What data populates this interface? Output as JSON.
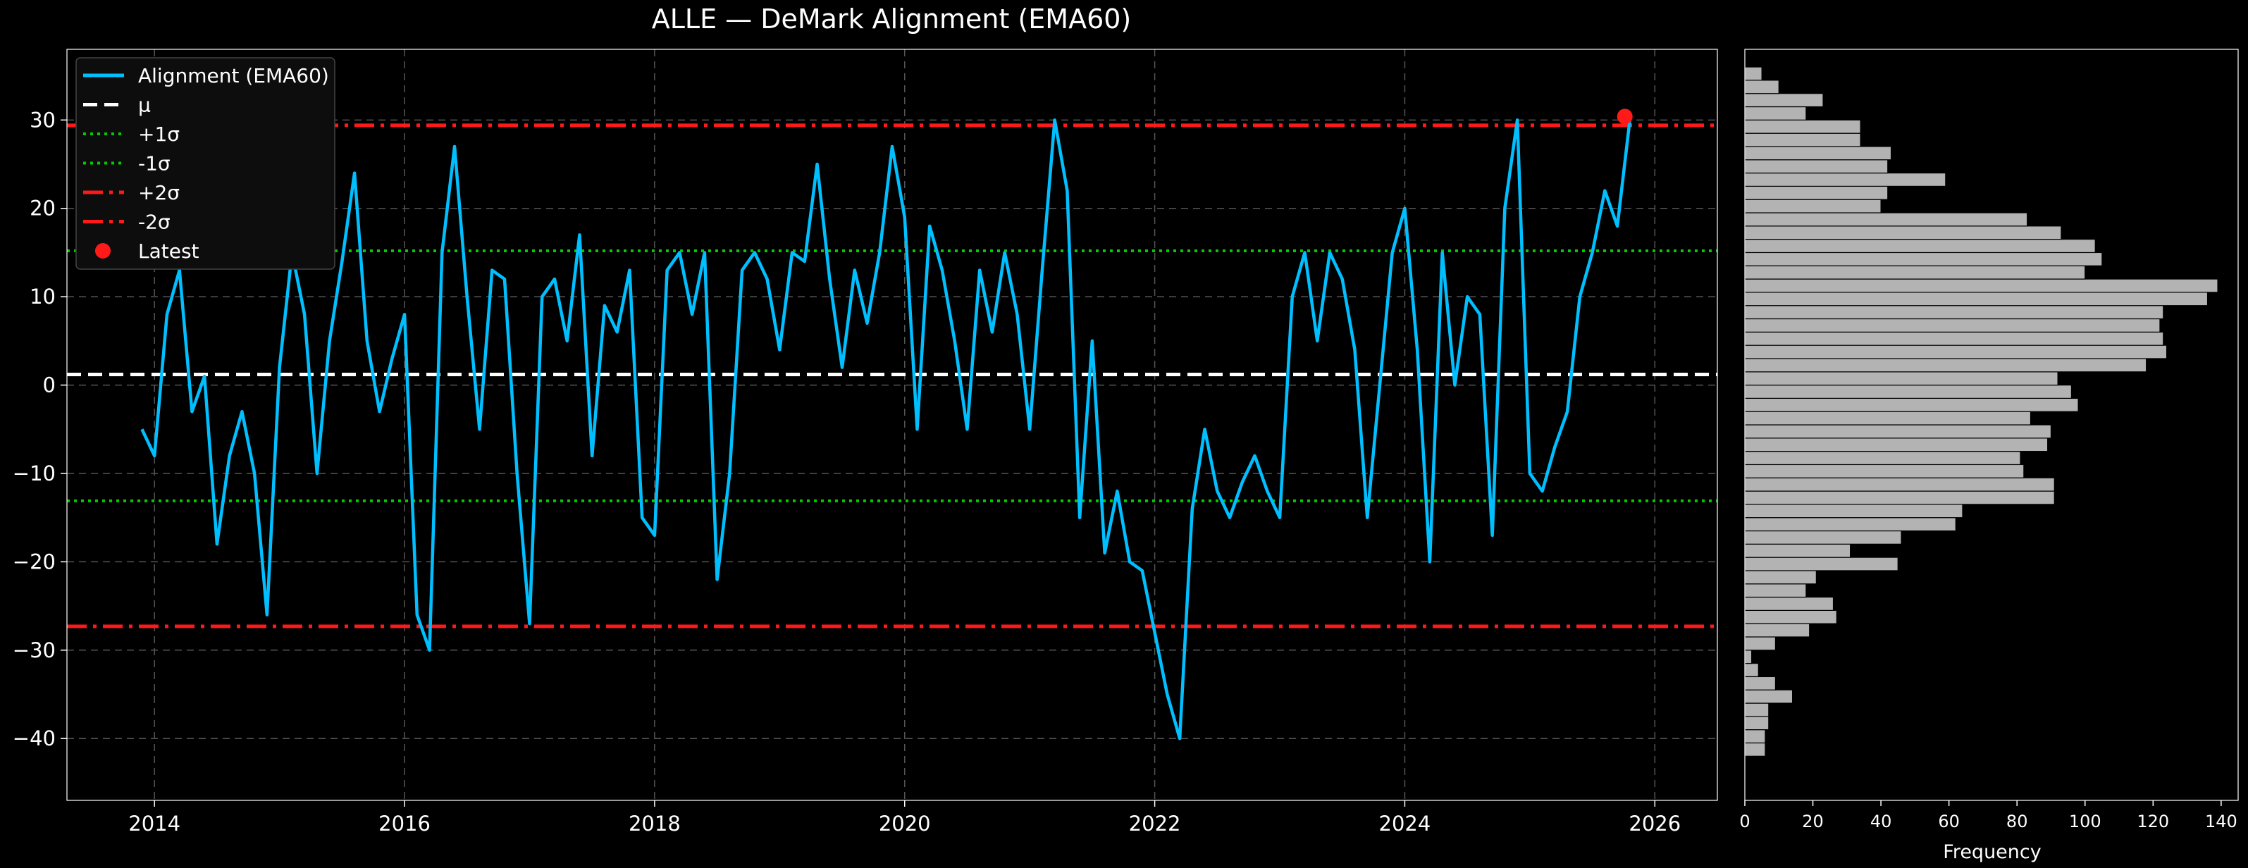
{
  "chart_data": [
    {
      "type": "line",
      "title": "ALLE — DeMark Alignment (EMA60)",
      "xlabel": "",
      "ylabel": "",
      "xlim": [
        2013.3,
        2026.5
      ],
      "ylim": [
        -47,
        38
      ],
      "xticks": [
        2014,
        2016,
        2018,
        2020,
        2022,
        2024,
        2026
      ],
      "xtick_labels": [
        "2014",
        "2016",
        "2018",
        "2020",
        "2022",
        "2024",
        "2026"
      ],
      "yticks": [
        -40,
        -30,
        -20,
        -10,
        0,
        10,
        20,
        30
      ],
      "ytick_labels": [
        "−40",
        "−30",
        "−20",
        "−10",
        "0",
        "10",
        "20",
        "30"
      ],
      "grid": true,
      "legend_position": "upper-left",
      "series": [
        {
          "name": "Alignment (EMA60)",
          "color": "#00bfff",
          "x": [
            2013.9,
            2014.0,
            2014.1,
            2014.2,
            2014.3,
            2014.4,
            2014.5,
            2014.6,
            2014.7,
            2014.8,
            2014.9,
            2015.0,
            2015.1,
            2015.2,
            2015.3,
            2015.4,
            2015.5,
            2015.6,
            2015.7,
            2015.8,
            2015.9,
            2016.0,
            2016.1,
            2016.2,
            2016.3,
            2016.4,
            2016.5,
            2016.6,
            2016.7,
            2016.8,
            2016.9,
            2017.0,
            2017.1,
            2017.2,
            2017.3,
            2017.4,
            2017.5,
            2017.6,
            2017.7,
            2017.8,
            2017.9,
            2018.0,
            2018.1,
            2018.2,
            2018.3,
            2018.4,
            2018.5,
            2018.6,
            2018.7,
            2018.8,
            2018.9,
            2019.0,
            2019.1,
            2019.2,
            2019.3,
            2019.4,
            2019.5,
            2019.6,
            2019.7,
            2019.8,
            2019.9,
            2020.0,
            2020.1,
            2020.2,
            2020.3,
            2020.4,
            2020.5,
            2020.6,
            2020.7,
            2020.8,
            2020.9,
            2021.0,
            2021.1,
            2021.2,
            2021.3,
            2021.4,
            2021.5,
            2021.6,
            2021.7,
            2021.8,
            2021.9,
            2022.0,
            2022.1,
            2022.2,
            2022.3,
            2022.4,
            2022.5,
            2022.6,
            2022.7,
            2022.8,
            2022.9,
            2023.0,
            2023.1,
            2023.2,
            2023.3,
            2023.4,
            2023.5,
            2023.6,
            2023.7,
            2023.8,
            2023.9,
            2024.0,
            2024.1,
            2024.2,
            2024.3,
            2024.4,
            2024.5,
            2024.6,
            2024.7,
            2024.8,
            2024.9,
            2025.0,
            2025.1,
            2025.2,
            2025.3,
            2025.4,
            2025.5,
            2025.6,
            2025.7,
            2025.8
          ],
          "y": [
            -5,
            -8,
            8,
            13,
            -3,
            1,
            -18,
            -8,
            -3,
            -10,
            -26,
            2,
            15,
            8,
            -10,
            5,
            14,
            24,
            5,
            -3,
            3,
            8,
            -26,
            -30,
            15,
            27,
            10,
            -5,
            13,
            12,
            -10,
            -27,
            10,
            12,
            5,
            17,
            -8,
            9,
            6,
            13,
            -15,
            -17,
            13,
            15,
            8,
            15,
            -22,
            -10,
            13,
            15,
            12,
            4,
            15,
            14,
            25,
            12,
            2,
            13,
            7,
            15,
            27,
            19,
            -5,
            18,
            13,
            5,
            -5,
            13,
            6,
            15,
            8,
            -5,
            13,
            30,
            22,
            -15,
            5,
            -19,
            -12,
            -20,
            -21,
            -28,
            -35,
            -40,
            -14,
            -5,
            -12,
            -15,
            -11,
            -8,
            -12,
            -15,
            10,
            15,
            5,
            15,
            12,
            4,
            -15,
            0,
            15,
            20,
            4,
            -20,
            15,
            0,
            10,
            8,
            -17,
            20,
            30,
            -10,
            -12,
            -7,
            -3,
            10,
            15,
            22,
            18,
            30
          ],
          "_note": "approximate read of the line"
        },
        {
          "name": "μ",
          "color": "#ffffff",
          "y_const": 1.2
        },
        {
          "name": "+1σ",
          "color": "#00cc00",
          "y_const": 15.2
        },
        {
          "name": "-1σ",
          "color": "#00cc00",
          "y_const": -13.1
        },
        {
          "name": "+2σ",
          "color": "#ff1a1a",
          "y_const": 29.4
        },
        {
          "name": "-2σ",
          "color": "#ff1a1a",
          "y_const": -27.3
        },
        {
          "name": "Latest",
          "color": "#ff1a1a",
          "x": [
            2025.76
          ],
          "y": [
            30.4
          ]
        }
      ]
    },
    {
      "type": "bar",
      "orientation": "horizontal",
      "title": "",
      "xlabel": "Frequency",
      "ylabel": "",
      "xlim": [
        0,
        145
      ],
      "ylim": [
        -47,
        38
      ],
      "xticks": [
        0,
        20,
        40,
        60,
        80,
        100,
        120,
        140
      ],
      "xtick_labels": [
        "0",
        "20",
        "40",
        "60",
        "80",
        "100",
        "120",
        "140"
      ],
      "bin_start": -42,
      "bin_width": 1.5,
      "counts": [
        6,
        6,
        7,
        7,
        14,
        9,
        4,
        2,
        9,
        19,
        27,
        26,
        18,
        21,
        45,
        31,
        46,
        62,
        64,
        91,
        91,
        82,
        81,
        89,
        90,
        84,
        98,
        96,
        92,
        118,
        124,
        123,
        122,
        123,
        136,
        139,
        100,
        105,
        103,
        93,
        83,
        40,
        42,
        59,
        42,
        43,
        34,
        34,
        18,
        23,
        10,
        5
      ],
      "color": "#b3b3b3"
    }
  ]
}
